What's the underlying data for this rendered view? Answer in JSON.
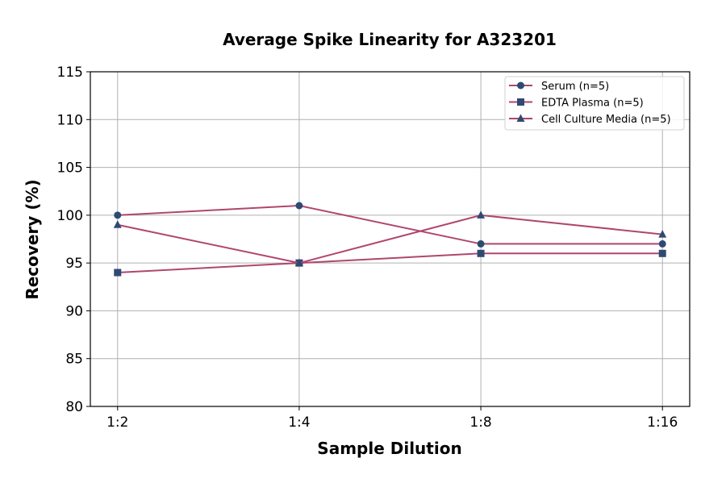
{
  "chart_data": {
    "type": "line",
    "title": "Average Spike Linearity for A323201",
    "xlabel": "Sample Dilution",
    "ylabel": "Recovery (%)",
    "categories": [
      "1:2",
      "1:4",
      "1:8",
      "1:16"
    ],
    "ylim": [
      80,
      115
    ],
    "yticks": [
      80,
      85,
      90,
      95,
      100,
      105,
      110,
      115
    ],
    "grid": true,
    "legend": "top-right",
    "line_color": "#b0466e",
    "marker_color": "#2e4a72",
    "series": [
      {
        "name": "Serum (n=5)",
        "marker": "circle",
        "values": [
          100,
          101,
          97,
          97
        ]
      },
      {
        "name": "EDTA Plasma (n=5)",
        "marker": "square",
        "values": [
          94,
          95,
          96,
          96
        ]
      },
      {
        "name": "Cell Culture Media (n=5)",
        "marker": "triangle",
        "values": [
          99,
          95,
          100,
          98
        ]
      }
    ]
  }
}
